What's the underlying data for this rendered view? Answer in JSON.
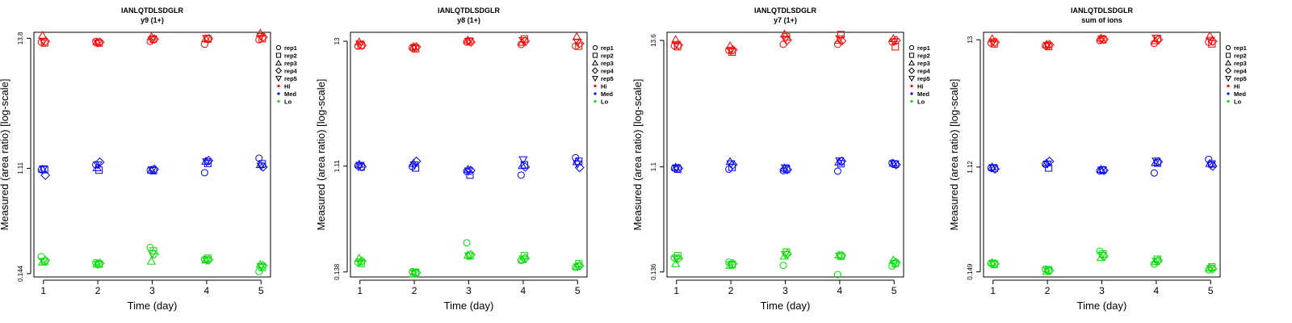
{
  "figure": {
    "colors": {
      "Hi": "#ff0000",
      "Med": "#0000ff",
      "Lo": "#00dd00"
    },
    "legend": {
      "items": [
        {
          "label": "rep1",
          "marker": "circle"
        },
        {
          "label": "rep2",
          "marker": "square"
        },
        {
          "label": "rep3",
          "marker": "triangle"
        },
        {
          "label": "rep4",
          "marker": "diamond"
        },
        {
          "label": "rep5",
          "marker": "triangle-down"
        },
        {
          "label": "Hi",
          "marker": "dot",
          "color": "#ff0000"
        },
        {
          "label": "Med",
          "marker": "dot",
          "color": "#0000ff"
        },
        {
          "label": "Lo",
          "marker": "dot",
          "color": "#00dd00"
        }
      ]
    }
  },
  "chart_data": [
    {
      "type": "scatter",
      "title": "IANLQTDLSDGLR",
      "subtitle": "y9 (1+)",
      "xlabel": "Time (day)",
      "ylabel": "Measured (area ratio) [log-scale]",
      "y_scale": "log",
      "x_ticks": [
        1,
        2,
        3,
        4,
        5
      ],
      "y_ticks": [
        {
          "value": 0.144,
          "label": "0.144"
        },
        {
          "value": 1.11,
          "label": "1.11"
        },
        {
          "value": 13.8,
          "label": "13.8"
        }
      ],
      "ylim": [
        0.135,
        15.5
      ],
      "legend_position": "right",
      "series": [
        {
          "group": "Hi",
          "rep": "rep1",
          "values": [
            12.8,
            13.0,
            13.0,
            12.3,
            13.4
          ]
        },
        {
          "group": "Hi",
          "rep": "rep2",
          "values": [
            12.6,
            12.6,
            13.6,
            13.6,
            13.7
          ]
        },
        {
          "group": "Hi",
          "rep": "rep3",
          "values": [
            14.6,
            12.8,
            14.2,
            13.7,
            15.2
          ]
        },
        {
          "group": "Hi",
          "rep": "rep4",
          "values": [
            13.0,
            12.8,
            13.6,
            13.7,
            14.1
          ]
        },
        {
          "group": "Hi",
          "rep": "rep5",
          "values": [
            13.0,
            12.6,
            13.4,
            13.8,
            14.3
          ]
        },
        {
          "group": "Med",
          "rep": "rep1",
          "values": [
            1.08,
            1.19,
            1.07,
            1.02,
            1.35
          ]
        },
        {
          "group": "Med",
          "rep": "rep2",
          "values": [
            1.08,
            1.07,
            1.06,
            1.22,
            1.21
          ]
        },
        {
          "group": "Med",
          "rep": "rep3",
          "values": [
            1.09,
            1.12,
            1.07,
            1.27,
            1.19
          ]
        },
        {
          "group": "Med",
          "rep": "rep4",
          "values": [
            0.97,
            1.25,
            1.09,
            1.29,
            1.14
          ]
        },
        {
          "group": "Med",
          "rep": "rep5",
          "values": [
            1.1,
            1.19,
            1.08,
            1.26,
            1.16
          ]
        },
        {
          "group": "Lo",
          "rep": "rep1",
          "values": [
            0.2,
            0.178,
            0.239,
            0.19,
            0.15
          ]
        },
        {
          "group": "Lo",
          "rep": "rep2",
          "values": [
            0.182,
            0.173,
            0.224,
            0.194,
            0.162
          ]
        },
        {
          "group": "Lo",
          "rep": "rep3",
          "values": [
            0.18,
            0.173,
            0.183,
            0.187,
            0.172
          ]
        },
        {
          "group": "Lo",
          "rep": "rep4",
          "values": [
            0.186,
            0.176,
            0.21,
            0.188,
            0.168
          ]
        },
        {
          "group": "Lo",
          "rep": "rep5",
          "values": [
            0.183,
            0.172,
            0.212,
            0.186,
            0.166
          ]
        }
      ]
    },
    {
      "type": "scatter",
      "title": "IANLQTDLSDGLR",
      "subtitle": "y8 (1+)",
      "xlabel": "Time (day)",
      "ylabel": "Measured (area ratio) [log-scale]",
      "y_scale": "log",
      "x_ticks": [
        1,
        2,
        3,
        4,
        5
      ],
      "y_ticks": [
        {
          "value": 0.138,
          "label": "0.138"
        },
        {
          "value": 1.11,
          "label": "1.11"
        },
        {
          "value": 13,
          "label": "13"
        }
      ],
      "ylim": [
        0.125,
        15.5
      ],
      "legend_position": "right",
      "series": [
        {
          "group": "Hi",
          "rep": "rep1",
          "values": [
            11.8,
            11.4,
            12.8,
            12.2,
            11.8
          ]
        },
        {
          "group": "Hi",
          "rep": "rep2",
          "values": [
            12.0,
            11.2,
            13.0,
            13.6,
            11.8
          ]
        },
        {
          "group": "Hi",
          "rep": "rep3",
          "values": [
            12.8,
            11.7,
            13.3,
            12.7,
            14.2
          ]
        },
        {
          "group": "Hi",
          "rep": "rep4",
          "values": [
            12.0,
            11.6,
            12.8,
            13.0,
            12.4
          ]
        },
        {
          "group": "Hi",
          "rep": "rep5",
          "values": [
            12.3,
            11.5,
            13.0,
            13.2,
            12.8
          ]
        },
        {
          "group": "Med",
          "rep": "rep1",
          "values": [
            1.12,
            1.1,
            1.0,
            0.93,
            1.31
          ]
        },
        {
          "group": "Med",
          "rep": "rep2",
          "values": [
            1.09,
            1.07,
            0.93,
            1.14,
            1.22
          ]
        },
        {
          "group": "Med",
          "rep": "rep3",
          "values": [
            1.15,
            1.17,
            1.04,
            1.12,
            1.21
          ]
        },
        {
          "group": "Med",
          "rep": "rep4",
          "values": [
            1.1,
            1.22,
            1.02,
            1.09,
            1.08
          ]
        },
        {
          "group": "Med",
          "rep": "rep5",
          "values": [
            1.13,
            1.14,
            1.01,
            1.26,
            1.16
          ]
        },
        {
          "group": "Lo",
          "rep": "rep1",
          "values": [
            0.167,
            0.139,
            0.245,
            0.173,
            0.151
          ]
        },
        {
          "group": "Lo",
          "rep": "rep2",
          "values": [
            0.163,
            0.137,
            0.189,
            0.19,
            0.162
          ]
        },
        {
          "group": "Lo",
          "rep": "rep3",
          "values": [
            0.18,
            0.133,
            0.192,
            0.176,
            0.154
          ]
        },
        {
          "group": "Lo",
          "rep": "rep4",
          "values": [
            0.171,
            0.136,
            0.194,
            0.181,
            0.156
          ]
        },
        {
          "group": "Lo",
          "rep": "rep5",
          "values": [
            0.168,
            0.135,
            0.19,
            0.178,
            0.153
          ]
        }
      ]
    },
    {
      "type": "scatter",
      "title": "IANLQTDLSDGLR",
      "subtitle": "y7 (1+)",
      "xlabel": "Time (day)",
      "ylabel": "Measured (area ratio) [log-scale]",
      "y_scale": "log",
      "x_ticks": [
        1,
        2,
        3,
        4,
        5
      ],
      "y_ticks": [
        {
          "value": 0.136,
          "label": "0.136"
        },
        {
          "value": 1.1,
          "label": "1.1"
        },
        {
          "value": 13.6,
          "label": "13.6"
        }
      ],
      "ylim": [
        0.123,
        16.0
      ],
      "legend_position": "right",
      "series": [
        {
          "group": "Hi",
          "rep": "rep1",
          "values": [
            12.2,
            11.2,
            12.6,
            12.6,
            13.2
          ]
        },
        {
          "group": "Hi",
          "rep": "rep2",
          "values": [
            12.0,
            10.8,
            14.6,
            15.3,
            12.0
          ]
        },
        {
          "group": "Hi",
          "rep": "rep3",
          "values": [
            13.8,
            12.2,
            15.4,
            13.6,
            14.1
          ]
        },
        {
          "group": "Hi",
          "rep": "rep4",
          "values": [
            12.4,
            11.3,
            13.7,
            13.5,
            13.6
          ]
        },
        {
          "group": "Hi",
          "rep": "rep5",
          "values": [
            12.6,
            11.1,
            14.0,
            14.1,
            13.3
          ]
        },
        {
          "group": "Med",
          "rep": "rep1",
          "values": [
            1.07,
            1.05,
            1.02,
            1.01,
            1.19
          ]
        },
        {
          "group": "Med",
          "rep": "rep2",
          "values": [
            1.05,
            1.09,
            1.05,
            1.17,
            1.16
          ]
        },
        {
          "group": "Med",
          "rep": "rep3",
          "values": [
            1.09,
            1.22,
            1.07,
            1.21,
            1.18
          ]
        },
        {
          "group": "Med",
          "rep": "rep4",
          "values": [
            1.07,
            1.15,
            1.04,
            1.23,
            1.15
          ]
        },
        {
          "group": "Med",
          "rep": "rep5",
          "values": [
            1.08,
            1.17,
            1.08,
            1.24,
            1.17
          ]
        },
        {
          "group": "Lo",
          "rep": "rep1",
          "values": [
            0.18,
            0.165,
            0.155,
            0.129,
            0.153
          ]
        },
        {
          "group": "Lo",
          "rep": "rep2",
          "values": [
            0.188,
            0.158,
            0.202,
            0.186,
            0.161
          ]
        },
        {
          "group": "Lo",
          "rep": "rep3",
          "values": [
            0.16,
            0.155,
            0.186,
            0.19,
            0.172
          ]
        },
        {
          "group": "Lo",
          "rep": "rep4",
          "values": [
            0.178,
            0.16,
            0.195,
            0.188,
            0.164
          ]
        },
        {
          "group": "Lo",
          "rep": "rep5",
          "values": [
            0.176,
            0.157,
            0.193,
            0.187,
            0.16
          ]
        }
      ]
    },
    {
      "type": "scatter",
      "title": "IANLQTDLSDGLR",
      "subtitle": "sum of ions",
      "xlabel": "Time (day)",
      "ylabel": "Measured (area ratio) [log-scale]",
      "y_scale": "log",
      "x_ticks": [
        1,
        2,
        3,
        4,
        5
      ],
      "y_ticks": [
        {
          "value": 0.149,
          "label": "0.149"
        },
        {
          "value": 1.12,
          "label": "1.12"
        },
        {
          "value": 13,
          "label": "13"
        }
      ],
      "ylim": [
        0.135,
        15.0
      ],
      "legend_position": "right",
      "series": [
        {
          "group": "Hi",
          "rep": "rep1",
          "values": [
            12.2,
            11.6,
            12.8,
            12.1,
            12.4
          ]
        },
        {
          "group": "Hi",
          "rep": "rep2",
          "values": [
            12.0,
            11.4,
            13.0,
            13.3,
            12.0
          ]
        },
        {
          "group": "Hi",
          "rep": "rep3",
          "values": [
            13.2,
            11.9,
            13.4,
            12.7,
            14.0
          ]
        },
        {
          "group": "Hi",
          "rep": "rep4",
          "values": [
            12.4,
            11.8,
            13.1,
            13.0,
            12.6
          ]
        },
        {
          "group": "Hi",
          "rep": "rep5",
          "values": [
            12.5,
            11.7,
            13.2,
            13.4,
            12.9
          ]
        },
        {
          "group": "Med",
          "rep": "rep1",
          "values": [
            1.1,
            1.18,
            1.04,
            1.0,
            1.3
          ]
        },
        {
          "group": "Med",
          "rep": "rep2",
          "values": [
            1.09,
            1.1,
            1.06,
            1.21,
            1.19
          ]
        },
        {
          "group": "Med",
          "rep": "rep3",
          "values": [
            1.12,
            1.21,
            1.07,
            1.22,
            1.2
          ]
        },
        {
          "group": "Med",
          "rep": "rep4",
          "values": [
            1.08,
            1.25,
            1.05,
            1.24,
            1.14
          ]
        },
        {
          "group": "Med",
          "rep": "rep5",
          "values": [
            1.11,
            1.19,
            1.06,
            1.26,
            1.17
          ]
        },
        {
          "group": "Lo",
          "rep": "rep1",
          "values": [
            0.176,
            0.157,
            0.222,
            0.173,
            0.155
          ]
        },
        {
          "group": "Lo",
          "rep": "rep2",
          "values": [
            0.172,
            0.155,
            0.21,
            0.19,
            0.164
          ]
        },
        {
          "group": "Lo",
          "rep": "rep3",
          "values": [
            0.178,
            0.15,
            0.196,
            0.181,
            0.16
          ]
        },
        {
          "group": "Lo",
          "rep": "rep4",
          "values": [
            0.174,
            0.153,
            0.202,
            0.185,
            0.158
          ]
        },
        {
          "group": "Lo",
          "rep": "rep5",
          "values": [
            0.175,
            0.152,
            0.205,
            0.183,
            0.159
          ]
        }
      ]
    }
  ]
}
